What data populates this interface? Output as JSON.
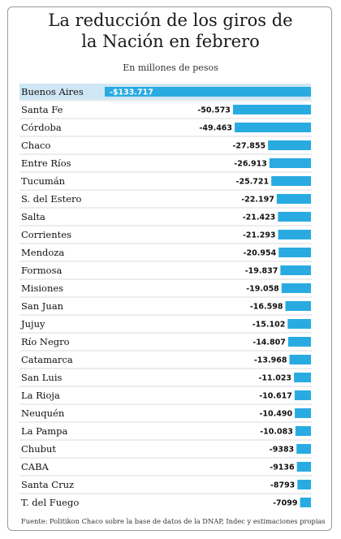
{
  "chart_data": {
    "type": "bar",
    "orientation": "horizontal",
    "title": "La reducción de los giros de la Nación en febrero",
    "subtitle": "En millones de pesos",
    "categories": [
      "Buenos Aires",
      "Santa Fe",
      "Córdoba",
      "Chaco",
      "Entre Ríos",
      "Tucumán",
      "S. del Estero",
      "Salta",
      "Corrientes",
      "Mendoza",
      "Formosa",
      "Misiones",
      "San Juan",
      "Jujuy",
      "Río Negro",
      "Catamarca",
      "San Luis",
      "La Rioja",
      "Neuquén",
      "La Pampa",
      "Chubut",
      "CABA",
      "Santa Cruz",
      "T. del Fuego"
    ],
    "values": [
      -133717,
      -50573,
      -49463,
      -27855,
      -26913,
      -25721,
      -22197,
      -21423,
      -21293,
      -20954,
      -19837,
      -19058,
      -16598,
      -15102,
      -14807,
      -13968,
      -11023,
      -10617,
      -10490,
      -10083,
      -9383,
      -9136,
      -8793,
      -7099
    ],
    "value_labels": [
      "-$133.717",
      "-50.573",
      "-49.463",
      "-27.855",
      "-26.913",
      "-25.721",
      "-22.197",
      "-21.423",
      "-21.293",
      "-20.954",
      "-19.837",
      "-19.058",
      "-16.598",
      "-15.102",
      "-14.807",
      "-13.968",
      "-11.023",
      "-10.617",
      "-10.490",
      "-10.083",
      "-9383",
      "-9136",
      "-8793",
      "-7099"
    ],
    "bar_color": "#29abe2",
    "first_row_highlight": "#cfe6f5",
    "grid": false,
    "legend": "none"
  },
  "source": "Fuente: Politikon Chaco sobre la base de datos de la DNAP, Indec y estimaciones propias"
}
